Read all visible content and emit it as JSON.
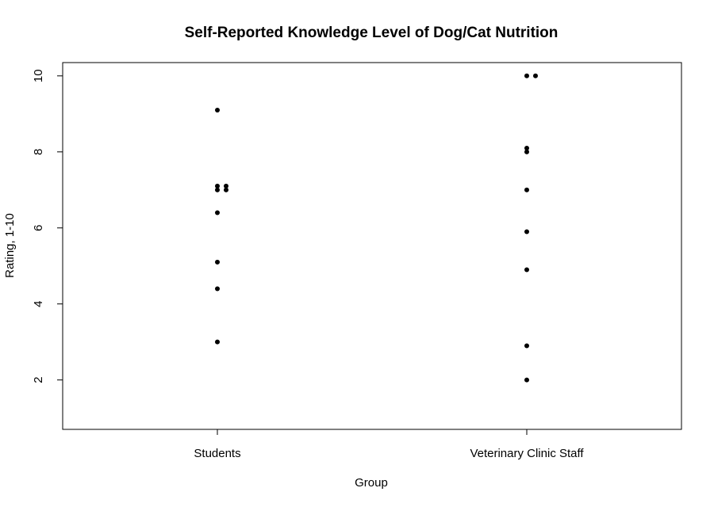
{
  "chart_data": {
    "type": "scatter",
    "title": "Self-Reported Knowledge Level of Dog/Cat Nutrition",
    "xlabel": "Group",
    "ylabel": "Rating, 1-10",
    "categories": [
      "Students",
      "Veterinary Clinic Staff"
    ],
    "ylim": [
      0.7,
      10.35
    ],
    "yticks": [
      "2",
      "4",
      "6",
      "8",
      "10"
    ],
    "grid": false,
    "series": [
      {
        "category": "Students",
        "points": [
          {
            "value": 9.1,
            "stack": 0
          },
          {
            "value": 7.1,
            "stack": 0
          },
          {
            "value": 7.1,
            "stack": 1
          },
          {
            "value": 7.0,
            "stack": 0
          },
          {
            "value": 7.0,
            "stack": 1
          },
          {
            "value": 6.4,
            "stack": 0
          },
          {
            "value": 5.1,
            "stack": 0
          },
          {
            "value": 4.4,
            "stack": 0
          },
          {
            "value": 3.0,
            "stack": 0
          }
        ]
      },
      {
        "category": "Veterinary Clinic Staff",
        "points": [
          {
            "value": 10.0,
            "stack": 0
          },
          {
            "value": 10.0,
            "stack": 1
          },
          {
            "value": 8.1,
            "stack": 0
          },
          {
            "value": 8.0,
            "stack": 0
          },
          {
            "value": 7.0,
            "stack": 0
          },
          {
            "value": 5.9,
            "stack": 0
          },
          {
            "value": 4.9,
            "stack": 0
          },
          {
            "value": 2.9,
            "stack": 0
          },
          {
            "value": 2.0,
            "stack": 0
          }
        ]
      }
    ]
  }
}
